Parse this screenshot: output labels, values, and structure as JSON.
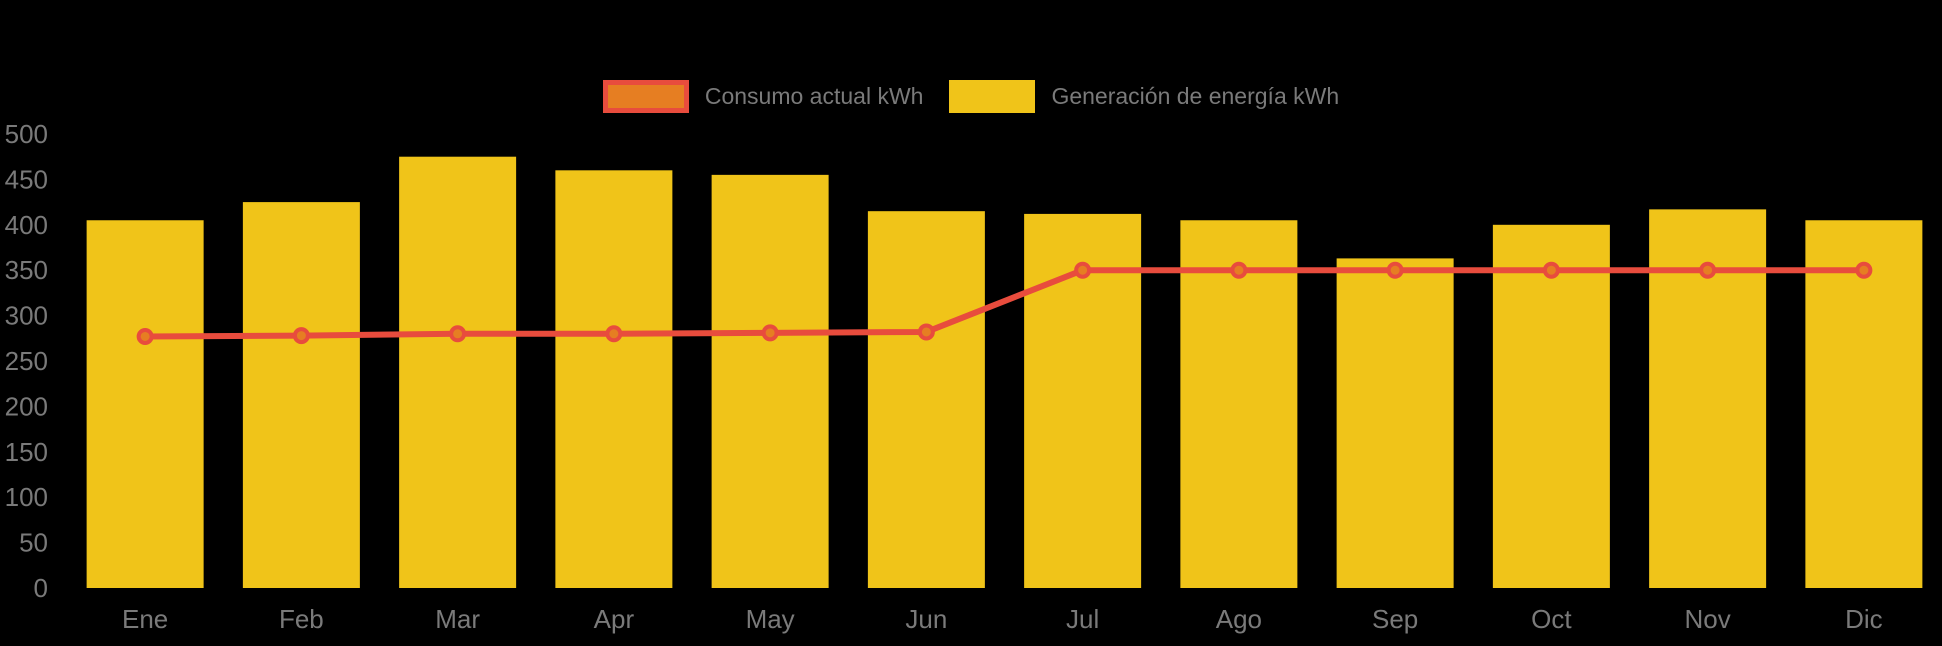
{
  "colors": {
    "background": "#000000",
    "bar": "#F0C419",
    "line": "#E84C3D",
    "marker_fill": "#E67E22",
    "axis_text": "#7a7a7a"
  },
  "chart_data": {
    "type": "bar",
    "subtype": "bar-with-line-overlay",
    "categories": [
      "Ene",
      "Feb",
      "Mar",
      "Apr",
      "May",
      "Jun",
      "Jul",
      "Ago",
      "Sep",
      "Oct",
      "Nov",
      "Dic"
    ],
    "series": [
      {
        "name": "Consumo actual kWh",
        "type": "line",
        "values": [
          277,
          278,
          280,
          280,
          281,
          282,
          350,
          350,
          350,
          350,
          350,
          350
        ]
      },
      {
        "name": "Generación de energía kWh",
        "type": "bar",
        "values": [
          405,
          425,
          475,
          460,
          455,
          415,
          412,
          405,
          363,
          400,
          417,
          405
        ]
      }
    ],
    "ylim": [
      0,
      500
    ],
    "y_ticks": [
      0,
      50,
      100,
      150,
      200,
      250,
      300,
      350,
      400,
      450,
      500
    ],
    "xlabel": "",
    "ylabel": "",
    "grid": false,
    "legend_position": "top"
  }
}
